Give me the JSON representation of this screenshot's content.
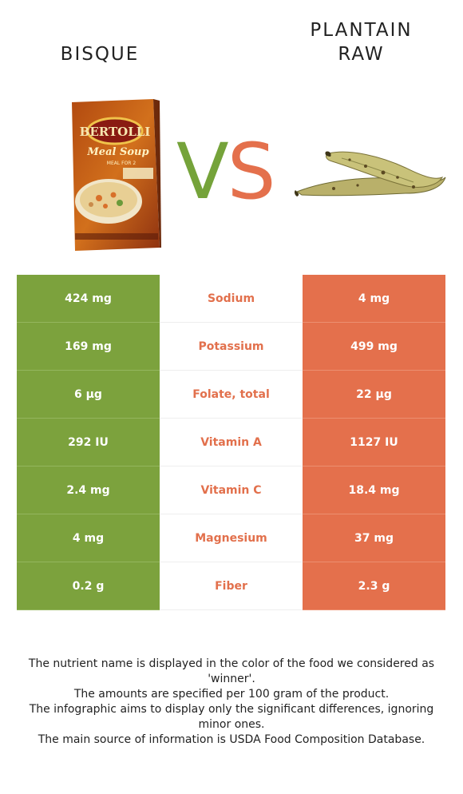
{
  "left_food": {
    "title": "BISQUE",
    "image": "soup-box"
  },
  "right_food": {
    "title_line1": "PLANTAIN",
    "title_line2": "RAW",
    "image": "plantain"
  },
  "vs": {
    "v": "V",
    "s": "S"
  },
  "colors": {
    "left": "#7ca23d",
    "right": "#e4704c",
    "winner_text": "#e2704c"
  },
  "product_box": {
    "brand": "BERTOLLI",
    "name": "Meal Soup",
    "sub": "MEAL FOR 2"
  },
  "rows": [
    {
      "left": "424 mg",
      "nutrient": "Sodium",
      "right": "4 mg"
    },
    {
      "left": "169 mg",
      "nutrient": "Potassium",
      "right": "499 mg"
    },
    {
      "left": "6 µg",
      "nutrient": "Folate, total",
      "right": "22 µg"
    },
    {
      "left": "292 IU",
      "nutrient": "Vitamin A",
      "right": "1127 IU"
    },
    {
      "left": "2.4 mg",
      "nutrient": "Vitamin C",
      "right": "18.4 mg"
    },
    {
      "left": "4 mg",
      "nutrient": "Magnesium",
      "right": "37 mg"
    },
    {
      "left": "0.2 g",
      "nutrient": "Fiber",
      "right": "2.3 g"
    }
  ],
  "notes": [
    "The nutrient name is displayed in the color of the food we considered as 'winner'.",
    "The amounts are specified per 100 gram of the product.",
    "The infographic aims to display only the significant differences, ignoring minor ones.",
    "The main source of information is USDA Food Composition Database."
  ]
}
